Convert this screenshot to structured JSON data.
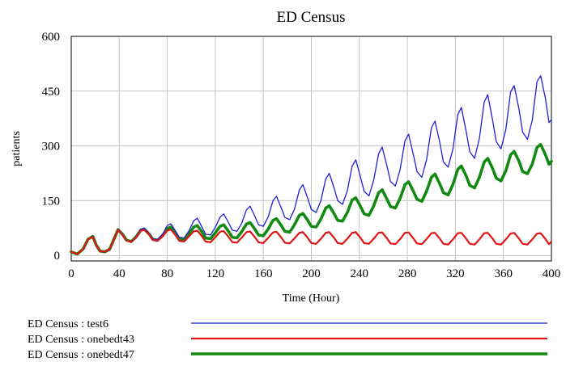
{
  "chart_data": {
    "type": "line",
    "title": "ED Census",
    "xlabel": "Time (Hour)",
    "ylabel": "patients",
    "xlim": [
      0,
      400
    ],
    "ylim": [
      -15,
      600
    ],
    "x_ticks": [
      0,
      40,
      80,
      120,
      160,
      200,
      240,
      280,
      320,
      360,
      400
    ],
    "y_ticks": [
      0,
      150,
      300,
      450,
      600
    ],
    "x_tick_labels": [
      "0",
      "40",
      "80",
      "120",
      "160",
      "200",
      "240",
      "280",
      "320",
      "360",
      "400"
    ],
    "y_tick_labels": [
      "0",
      "150",
      "300",
      "450",
      "600"
    ],
    "grid": true,
    "legend_position": "bottom",
    "series": [
      {
        "name": "ED Census : test6",
        "color": "#1f1fd6",
        "line_style": "thin",
        "x": [
          0,
          5,
          10,
          14,
          18,
          21,
          24,
          28,
          32,
          36,
          39,
          43,
          46,
          50,
          54,
          58,
          61,
          65,
          68,
          72,
          76,
          80,
          83,
          87,
          90,
          94,
          98,
          102,
          105,
          109,
          112,
          116,
          120,
          124,
          127,
          131,
          134,
          138,
          142,
          146,
          149,
          153,
          156,
          160,
          164,
          168,
          171,
          175,
          178,
          182,
          186,
          190,
          193,
          197,
          200,
          204,
          208,
          212,
          215,
          219,
          222,
          226,
          230,
          234,
          237,
          241,
          244,
          248,
          252,
          256,
          259,
          263,
          266,
          270,
          274,
          278,
          281,
          285,
          288,
          292,
          296,
          300,
          303,
          307,
          310,
          314,
          318,
          322,
          325,
          329,
          332,
          336,
          340,
          344,
          347,
          351,
          354,
          358,
          362,
          366,
          369,
          373,
          376,
          380,
          384,
          388,
          391,
          395,
          398,
          400
        ],
        "y": [
          10,
          4,
          18,
          45,
          53,
          27,
          12,
          10,
          17,
          48,
          72,
          58,
          42,
          38,
          52,
          72,
          75,
          60,
          45,
          44,
          58,
          82,
          87,
          66,
          50,
          48,
          67,
          95,
          102,
          77,
          58,
          56,
          77,
          105,
          114,
          90,
          70,
          66,
          88,
          125,
          135,
          107,
          84,
          80,
          105,
          150,
          162,
          130,
          104,
          98,
          127,
          180,
          194,
          156,
          126,
          118,
          151,
          210,
          225,
          184,
          150,
          140,
          178,
          245,
          262,
          214,
          176,
          163,
          207,
          278,
          297,
          245,
          203,
          190,
          236,
          314,
          332,
          276,
          230,
          214,
          262,
          350,
          368,
          310,
          256,
          242,
          292,
          386,
          405,
          340,
          284,
          266,
          320,
          420,
          440,
          370,
          312,
          292,
          345,
          448,
          465,
          400,
          338,
          318,
          370,
          476,
          492,
          430,
          364,
          372
        ]
      },
      {
        "name": "ED Census : onebedt43",
        "color": "#e01515",
        "line_style": "medium",
        "x": [
          0,
          5,
          10,
          14,
          18,
          21,
          24,
          28,
          32,
          36,
          39,
          43,
          46,
          50,
          54,
          58,
          61,
          65,
          68,
          72,
          76,
          80,
          83,
          87,
          90,
          94,
          98,
          102,
          105,
          109,
          112,
          116,
          120,
          124,
          127,
          131,
          134,
          138,
          142,
          146,
          149,
          153,
          156,
          160,
          164,
          168,
          171,
          175,
          178,
          182,
          186,
          190,
          193,
          197,
          200,
          204,
          208,
          212,
          215,
          219,
          222,
          226,
          230,
          234,
          237,
          241,
          244,
          248,
          252,
          256,
          259,
          263,
          266,
          270,
          274,
          278,
          281,
          285,
          288,
          292,
          296,
          300,
          303,
          307,
          310,
          314,
          318,
          322,
          325,
          329,
          332,
          336,
          340,
          344,
          347,
          351,
          354,
          358,
          362,
          366,
          369,
          373,
          376,
          380,
          384,
          388,
          391,
          395,
          398,
          400
        ],
        "y": [
          10,
          4,
          18,
          45,
          51,
          27,
          12,
          10,
          17,
          47,
          70,
          56,
          41,
          37,
          50,
          68,
          70,
          57,
          42,
          40,
          52,
          68,
          71,
          55,
          40,
          38,
          52,
          66,
          68,
          52,
          38,
          36,
          50,
          65,
          67,
          51,
          37,
          35,
          49,
          64,
          66,
          50,
          36,
          34,
          48,
          63,
          65,
          49,
          35,
          33,
          47,
          62,
          64,
          48,
          34,
          32,
          46,
          62,
          64,
          48,
          34,
          32,
          46,
          62,
          64,
          48,
          34,
          32,
          46,
          62,
          63,
          47,
          33,
          31,
          45,
          62,
          63,
          47,
          33,
          31,
          45,
          61,
          62,
          46,
          32,
          30,
          44,
          61,
          62,
          46,
          32,
          30,
          44,
          61,
          62,
          46,
          32,
          30,
          44,
          60,
          62,
          46,
          32,
          30,
          44,
          60,
          61,
          45,
          31,
          38
        ]
      },
      {
        "name": "ED Census : onebedt47",
        "color": "#128a12",
        "line_style": "thick",
        "x": [
          0,
          5,
          10,
          14,
          18,
          21,
          24,
          28,
          32,
          36,
          39,
          43,
          46,
          50,
          54,
          58,
          61,
          65,
          68,
          72,
          76,
          80,
          83,
          87,
          90,
          94,
          98,
          102,
          105,
          109,
          112,
          116,
          120,
          124,
          127,
          131,
          134,
          138,
          142,
          146,
          149,
          153,
          156,
          160,
          164,
          168,
          171,
          175,
          178,
          182,
          186,
          190,
          193,
          197,
          200,
          204,
          208,
          212,
          215,
          219,
          222,
          226,
          230,
          234,
          237,
          241,
          244,
          248,
          252,
          256,
          259,
          263,
          266,
          270,
          274,
          278,
          281,
          285,
          288,
          292,
          296,
          300,
          303,
          307,
          310,
          314,
          318,
          322,
          325,
          329,
          332,
          336,
          340,
          344,
          347,
          351,
          354,
          358,
          362,
          366,
          369,
          373,
          376,
          380,
          384,
          388,
          391,
          395,
          398,
          400
        ],
        "y": [
          10,
          4,
          18,
          45,
          52,
          27,
          12,
          10,
          17,
          48,
          71,
          57,
          42,
          38,
          51,
          70,
          72,
          58,
          44,
          42,
          54,
          74,
          78,
          60,
          45,
          43,
          58,
          78,
          82,
          64,
          48,
          46,
          62,
          80,
          84,
          66,
          50,
          48,
          65,
          86,
          90,
          72,
          56,
          54,
          72,
          96,
          101,
          82,
          66,
          64,
          84,
          110,
          115,
          96,
          80,
          78,
          100,
          130,
          136,
          114,
          96,
          94,
          118,
          152,
          158,
          134,
          114,
          110,
          136,
          172,
          180,
          154,
          134,
          130,
          157,
          194,
          202,
          176,
          154,
          148,
          176,
          214,
          223,
          196,
          172,
          166,
          195,
          236,
          245,
          218,
          192,
          185,
          214,
          256,
          266,
          238,
          212,
          204,
          232,
          276,
          285,
          258,
          230,
          224,
          250,
          296,
          304,
          276,
          250,
          258
        ]
      }
    ]
  }
}
